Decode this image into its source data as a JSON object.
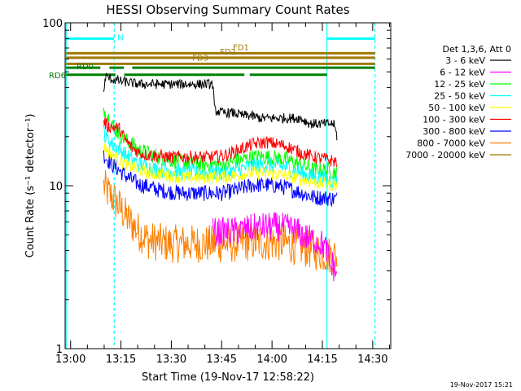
{
  "chart_data": {
    "type": "line",
    "title": "HESSI Observing Summary Count Rates",
    "xlabel": "Start Time (19-Nov-17 12:58:22)",
    "ylabel": "Count Rate (s⁻¹ detector⁻¹)",
    "footer": "19-Nov-2017 15:21",
    "x_unit": "minutes after 12:58:22",
    "xlim": [
      0,
      97
    ],
    "ylim": [
      1,
      100
    ],
    "y_scale": "log",
    "x_ticks": [
      {
        "x": 1.63,
        "label": "13:00"
      },
      {
        "x": 16.63,
        "label": "13:15"
      },
      {
        "x": 31.63,
        "label": "13:30"
      },
      {
        "x": 46.63,
        "label": "13:45"
      },
      {
        "x": 61.63,
        "label": "14:00"
      },
      {
        "x": 76.63,
        "label": "14:15"
      },
      {
        "x": 91.63,
        "label": "14:30"
      }
    ],
    "y_ticks": [
      {
        "y": 1,
        "label": "1"
      },
      {
        "y": 10,
        "label": "10"
      },
      {
        "y": 100,
        "label": "100"
      }
    ],
    "legend_title": "Det 1,3,6, Att 0",
    "legend_position": "right",
    "series": [
      {
        "name": "3 - 6 keV",
        "color": "#000000",
        "noise": 0.03,
        "x": [
          11.5,
          12,
          14,
          16,
          19,
          22,
          25,
          28,
          31,
          35,
          40,
          44,
          44.5,
          47,
          50,
          53,
          55,
          58,
          62,
          66,
          70,
          73,
          76,
          78,
          80,
          81
        ],
        "y": [
          36,
          47,
          45,
          44,
          43,
          42,
          42,
          42,
          42,
          42,
          42,
          42,
          29,
          28,
          28,
          27,
          27,
          26,
          26,
          26,
          26,
          24,
          24,
          24,
          24,
          20
        ]
      },
      {
        "name": "6 - 12 keV",
        "color": "#ff00ff",
        "noise": 0.09,
        "x": [
          44,
          47,
          52,
          56,
          60,
          64,
          68,
          72,
          76,
          78,
          79,
          79.7,
          80.5,
          81
        ],
        "y": [
          5.2,
          5.2,
          5.3,
          5.5,
          5.6,
          5.6,
          5.4,
          4.8,
          4.5,
          4.0,
          3.1,
          3.3,
          2.9,
          3.1
        ]
      },
      {
        "name": "12 - 25 keV",
        "color": "#00ff00",
        "noise": 0.05,
        "x": [
          11.5,
          12,
          13,
          14,
          15,
          16,
          18,
          20,
          22,
          24,
          26,
          28,
          31,
          35,
          40,
          44,
          47,
          50,
          53,
          56,
          60,
          63,
          66,
          70,
          74,
          78,
          81
        ],
        "y": [
          30,
          28,
          26,
          24,
          22,
          21,
          19,
          18,
          16.5,
          16,
          15.5,
          15,
          14.5,
          14,
          13.5,
          13.5,
          13.5,
          14,
          14.5,
          15,
          15,
          14.8,
          14.5,
          13.5,
          12.5,
          12.5,
          12
        ]
      },
      {
        "name": "25 - 50 keV",
        "color": "#00ffff",
        "noise": 0.05,
        "x": [
          11.5,
          12,
          14,
          16,
          18,
          20,
          22,
          25,
          28,
          31,
          35,
          40,
          44,
          47,
          50,
          53,
          56,
          60,
          63,
          66,
          70,
          74,
          78,
          81
        ],
        "y": [
          22,
          20,
          18,
          17,
          15.5,
          14.5,
          13.5,
          13,
          12.5,
          12.5,
          12,
          12,
          12,
          12,
          12.3,
          12.8,
          13.2,
          13.5,
          13.3,
          13,
          12,
          11.3,
          11,
          10.5
        ]
      },
      {
        "name": "50 - 100 keV",
        "color": "#ffff00",
        "noise": 0.04,
        "x": [
          11.5,
          12,
          14,
          16,
          18,
          20,
          22,
          25,
          28,
          31,
          35,
          40,
          44,
          47,
          50,
          53,
          56,
          60,
          63,
          66,
          70,
          74,
          78,
          81
        ],
        "y": [
          18,
          17,
          15.5,
          14.5,
          13.5,
          13,
          12.5,
          12,
          11.8,
          11.5,
          11.2,
          11.2,
          11.3,
          11.3,
          11.5,
          11.8,
          12,
          12,
          11.8,
          11.5,
          11,
          10.5,
          10.2,
          10
        ]
      },
      {
        "name": "100 - 300 keV",
        "color": "#ff0000",
        "noise": 0.04,
        "x": [
          11.5,
          12,
          13,
          14,
          16,
          18,
          20,
          22,
          24,
          26,
          28,
          31,
          35,
          40,
          44,
          47,
          50,
          53,
          56,
          60,
          63,
          66,
          70,
          74,
          78,
          81
        ],
        "y": [
          25,
          24,
          23,
          23,
          22.5,
          19,
          17,
          16,
          15.5,
          15.3,
          15.2,
          15,
          15,
          15,
          15,
          15.3,
          16,
          17,
          18,
          18.5,
          18,
          17.5,
          16,
          15,
          14.5,
          14
        ]
      },
      {
        "name": "300 - 800 keV",
        "color": "#0000ff",
        "noise": 0.05,
        "x": [
          11.5,
          12,
          14,
          16,
          18,
          20,
          22,
          25,
          28,
          31,
          35,
          40,
          44,
          47,
          50,
          53,
          56,
          60,
          63,
          66,
          70,
          74,
          78,
          81
        ],
        "y": [
          15.5,
          15,
          13.5,
          12.5,
          11.5,
          10.8,
          10.2,
          9.8,
          9.4,
          9.2,
          9.0,
          9.0,
          9.0,
          9.0,
          9.3,
          9.7,
          10.1,
          10.1,
          10.0,
          9.7,
          9.1,
          8.5,
          8.4,
          8.3
        ]
      },
      {
        "name": "800 - 7000 keV",
        "color": "#ff8000",
        "noise": 0.12,
        "x": [
          11.5,
          12,
          14,
          16,
          18,
          20,
          22,
          25,
          28,
          31,
          35,
          40,
          44,
          47,
          50,
          53,
          56,
          60,
          63,
          66,
          70,
          74,
          78,
          81
        ],
        "y": [
          10,
          9.5,
          8.5,
          7.5,
          6.5,
          5.8,
          5.2,
          4.6,
          4.5,
          4.4,
          4.4,
          4.4,
          4.4,
          4.4,
          4.4,
          4.5,
          4.5,
          4.5,
          4.5,
          4.4,
          4.2,
          4.0,
          3.8,
          3.7
        ]
      },
      {
        "name": "7000 - 20000 keV",
        "color": "#a07800",
        "noise": 0.04,
        "x": [],
        "y": []
      }
    ],
    "vertical_lines": [
      {
        "x": 0.3,
        "color": "#00ffff",
        "style": "solid"
      },
      {
        "x": 14.6,
        "color": "#00ffff",
        "style": "dashed"
      },
      {
        "x": 78.0,
        "color": "#00ffff",
        "style": "solid"
      },
      {
        "x": 92.3,
        "color": "#00ffff",
        "style": "dashed"
      }
    ],
    "flag_bars": [
      {
        "label": "N",
        "color": "#00ffff",
        "y": 80,
        "segments": [
          [
            0.3,
            14.6
          ],
          [
            78.0,
            92.3
          ]
        ]
      },
      {
        "label": "FD1",
        "color": "#a07800",
        "y": 65,
        "segments": [
          [
            0.3,
            92.3
          ]
        ]
      },
      {
        "label": "FD2",
        "color": "#a07800",
        "y": 61,
        "segments": [
          [
            0.3,
            92.3
          ]
        ]
      },
      {
        "label": "FD3",
        "color": "#a07800",
        "y": 56,
        "segments": [
          [
            0.3,
            92.3
          ]
        ]
      },
      {
        "label": "RD0",
        "color": "#008000",
        "y": 53,
        "segments": [
          [
            0.3,
            10.5
          ],
          [
            13.2,
            17.5
          ],
          [
            20,
            92.3
          ]
        ]
      },
      {
        "label": "RD6",
        "color": "#008000",
        "y": 48,
        "segments": [
          [
            0.3,
            15.0
          ],
          [
            17.6,
            44.7
          ],
          [
            44.7,
            53.4
          ],
          [
            55.0,
            78.0
          ]
        ]
      }
    ]
  }
}
